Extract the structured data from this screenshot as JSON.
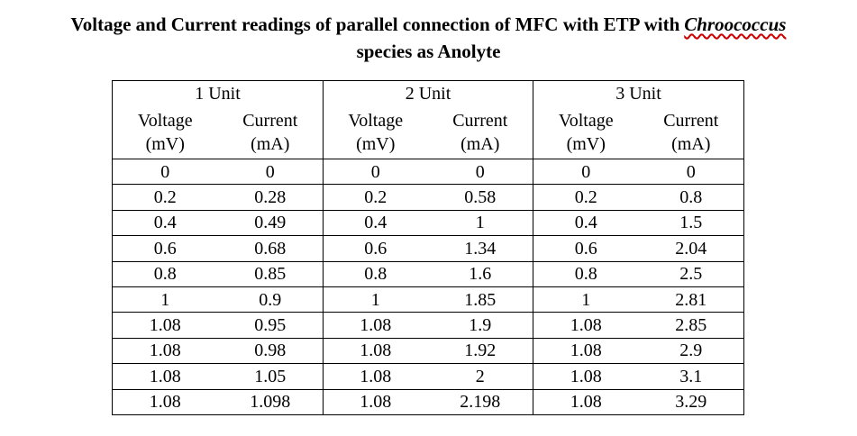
{
  "title": {
    "line1": "Voltage and Current readings of parallel connection of MFC with ETP with",
    "species": "Chroococcus",
    "line2": "species as Anolyte"
  },
  "table": {
    "groups": [
      "1 Unit",
      "2 Unit",
      "3 Unit"
    ],
    "subheaders": [
      [
        "Voltage",
        "(mV)"
      ],
      [
        "Current",
        "(mA)"
      ],
      [
        "Voltage",
        "(mV)"
      ],
      [
        "Current",
        "(mA)"
      ],
      [
        "Voltage",
        "(mV)"
      ],
      [
        "Current",
        "(mA)"
      ]
    ],
    "rows": [
      [
        "0",
        "0",
        "0",
        "0",
        "0",
        "0"
      ],
      [
        "0.2",
        "0.28",
        "0.2",
        "0.58",
        "0.2",
        "0.8"
      ],
      [
        "0.4",
        "0.49",
        "0.4",
        "1",
        "0.4",
        "1.5"
      ],
      [
        "0.6",
        "0.68",
        "0.6",
        "1.34",
        "0.6",
        "2.04"
      ],
      [
        "0.8",
        "0.85",
        "0.8",
        "1.6",
        "0.8",
        "2.5"
      ],
      [
        "1",
        "0.9",
        "1",
        "1.85",
        "1",
        "2.81"
      ],
      [
        "1.08",
        "0.95",
        "1.08",
        "1.9",
        "1.08",
        "2.85"
      ],
      [
        "1.08",
        "0.98",
        "1.08",
        "1.92",
        "1.08",
        "2.9"
      ],
      [
        "1.08",
        "1.05",
        "1.08",
        "2",
        "1.08",
        "3.1"
      ],
      [
        "1.08",
        "1.098",
        "1.08",
        "2.198",
        "1.08",
        "3.29"
      ]
    ]
  }
}
